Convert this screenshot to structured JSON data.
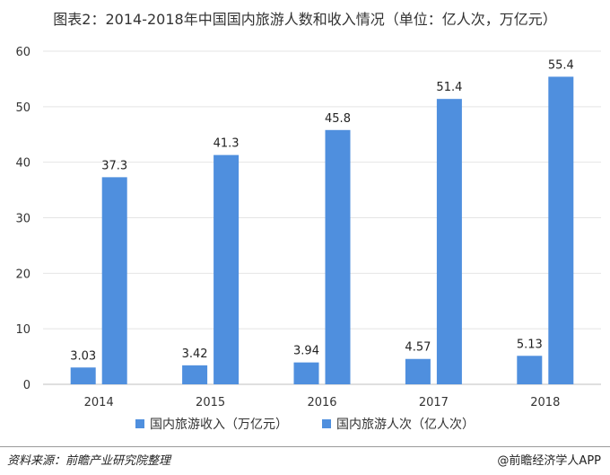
{
  "title": "图表2：2014-2018年中国国内旅游人数和收入情况（单位：亿人次，万亿元）",
  "footer": {
    "source": "资料来源：前瞻产业研究院整理",
    "brand": "@前瞻经济学人APP"
  },
  "colors": {
    "series": [
      "#4f8fde",
      "#4f8fde"
    ],
    "axis": "#bfbfbf",
    "grid": "#e4e4e4"
  },
  "chart_data": {
    "type": "bar",
    "categories": [
      "2014",
      "2015",
      "2016",
      "2017",
      "2018"
    ],
    "series": [
      {
        "name": "国内旅游收入（万亿元）",
        "values": [
          3.03,
          3.42,
          3.94,
          4.57,
          5.13
        ]
      },
      {
        "name": "国内旅游人次（亿人次）",
        "values": [
          37.3,
          41.3,
          45.8,
          51.4,
          55.4
        ]
      }
    ],
    "ylim": [
      0,
      60
    ],
    "yticks": [
      0,
      10,
      20,
      30,
      40,
      50,
      60
    ],
    "grid": true,
    "legend": "bottom"
  }
}
